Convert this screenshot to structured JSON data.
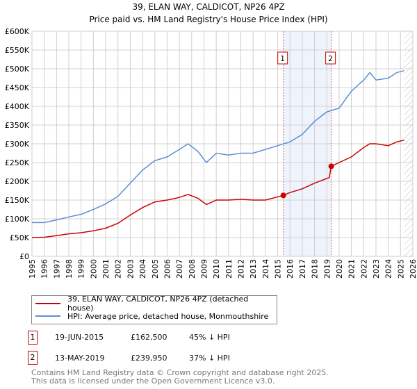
{
  "chart_data": {
    "type": "line",
    "title": "39, ELAN WAY, CALDICOT, NP26 4PZ",
    "subtitle": "Price paid vs. HM Land Registry's House Price Index (HPI)",
    "xlim": [
      1995,
      2026
    ],
    "ylim": [
      0,
      600000
    ],
    "y_ticks": [
      0,
      50000,
      100000,
      150000,
      200000,
      250000,
      300000,
      350000,
      400000,
      450000,
      500000,
      550000,
      600000
    ],
    "y_tick_labels": [
      "£0",
      "£50K",
      "£100K",
      "£150K",
      "£200K",
      "£250K",
      "£300K",
      "£350K",
      "£400K",
      "£450K",
      "£500K",
      "£550K",
      "£600K"
    ],
    "x_ticks": [
      1995,
      1996,
      1997,
      1998,
      1999,
      2000,
      2001,
      2002,
      2003,
      2004,
      2005,
      2006,
      2007,
      2008,
      2009,
      2010,
      2011,
      2012,
      2013,
      2014,
      2015,
      2016,
      2017,
      2018,
      2019,
      2020,
      2021,
      2022,
      2023,
      2024,
      2025,
      2026
    ],
    "grid": true,
    "series": [
      {
        "name": "39, ELAN WAY, CALDICOT, NP26 4PZ (detached house)",
        "color": "#cc0000",
        "x": [
          1995,
          1996,
          1997,
          1998,
          1999,
          2000,
          2001,
          2002,
          2003,
          2004,
          2005,
          2006,
          2007,
          2007.7,
          2008.5,
          2009.2,
          2010,
          2011,
          2012,
          2013,
          2014,
          2015.46,
          2016,
          2017,
          2018,
          2019.2,
          2019.36,
          2020,
          2021,
          2022,
          2022.5,
          2023,
          2024,
          2024.7,
          2025.3
        ],
        "y": [
          50000,
          51000,
          55000,
          60000,
          63000,
          68000,
          75000,
          88000,
          110000,
          130000,
          145000,
          150000,
          157000,
          165000,
          155000,
          138000,
          150000,
          150000,
          152000,
          150000,
          150000,
          162500,
          170000,
          180000,
          195000,
          210000,
          239950,
          250000,
          265000,
          290000,
          300000,
          300000,
          295000,
          305000,
          310000
        ]
      },
      {
        "name": "HPI: Average price, detached house, Monmouthshire",
        "color": "#5b8fd4",
        "x": [
          1995,
          1996,
          1997,
          1998,
          1999,
          2000,
          2001,
          2002,
          2003,
          2004,
          2005,
          2006,
          2007,
          2007.7,
          2008.5,
          2009.2,
          2010,
          2011,
          2012,
          2013,
          2014,
          2015,
          2016,
          2017,
          2018,
          2019,
          2020,
          2021,
          2022,
          2022.5,
          2023,
          2024,
          2024.7,
          2025.3
        ],
        "y": [
          90000,
          90000,
          97000,
          105000,
          112000,
          125000,
          140000,
          160000,
          195000,
          230000,
          255000,
          265000,
          285000,
          300000,
          280000,
          250000,
          275000,
          270000,
          275000,
          275000,
          285000,
          295000,
          305000,
          325000,
          360000,
          385000,
          395000,
          440000,
          470000,
          490000,
          470000,
          475000,
          490000,
          495000
        ]
      }
    ],
    "sales": [
      {
        "label": "1",
        "x": 2015.46,
        "y": 162500
      },
      {
        "label": "2",
        "x": 2019.36,
        "y": 239950
      }
    ],
    "shaded_range": [
      2015.46,
      2019.36
    ],
    "hatched_from": 2025.3
  },
  "legend": {
    "red": "39, ELAN WAY, CALDICOT, NP26 4PZ (detached house)",
    "blue": "HPI: Average price, detached house, Monmouthshire"
  },
  "transactions": [
    {
      "num": "1",
      "date": "19-JUN-2015",
      "price": "£162,500",
      "hpi": "45% ↓ HPI"
    },
    {
      "num": "2",
      "date": "13-MAY-2019",
      "price": "£239,950",
      "hpi": "37% ↓ HPI"
    }
  ],
  "footer": {
    "line1": "Contains HM Land Registry data © Crown copyright and database right 2025.",
    "line2": "This data is licensed under the Open Government Licence v3.0."
  }
}
